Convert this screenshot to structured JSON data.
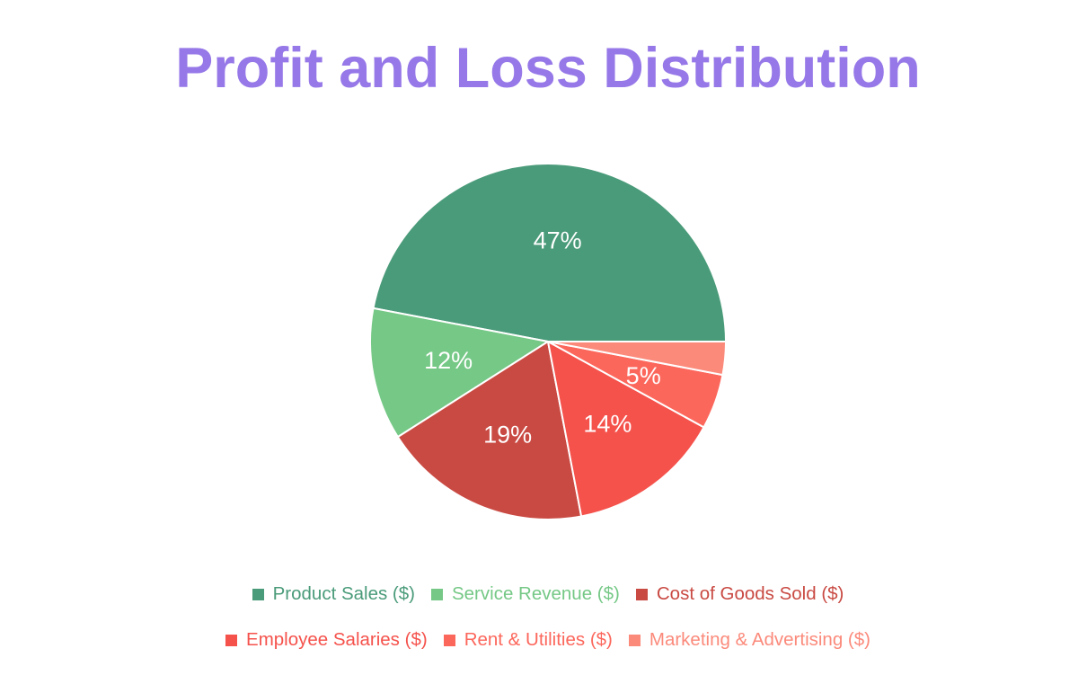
{
  "page": {
    "background": "#ffffff"
  },
  "title": {
    "text": "Profit and Loss Distribution",
    "color": "#9678e8"
  },
  "chart_data": {
    "type": "pie",
    "title": "Profit and Loss Distribution",
    "start_angle_deg": 0,
    "direction": "counterclockwise",
    "slice_border_color": "#ffffff",
    "slice_label_color": "#ffffff",
    "legend_position": "bottom",
    "legend_rows": 2,
    "slices": [
      {
        "label": "Product Sales ($)",
        "value": 47,
        "pct_label": "47%",
        "color": "#4a9b7a"
      },
      {
        "label": "Service Revenue ($)",
        "value": 12,
        "pct_label": "12%",
        "color": "#75c886"
      },
      {
        "label": "Cost of Goods Sold ($)",
        "value": 19,
        "pct_label": "19%",
        "color": "#c94a43"
      },
      {
        "label": "Employee Salaries ($)",
        "value": 14,
        "pct_label": "14%",
        "color": "#f5524c"
      },
      {
        "label": "Rent & Utilities ($)",
        "value": 5,
        "pct_label": "5%",
        "color": "#fc675c"
      },
      {
        "label": "Marketing & Advertising ($)",
        "value": 3,
        "pct_label": "",
        "color": "#fb8a7b"
      }
    ]
  }
}
